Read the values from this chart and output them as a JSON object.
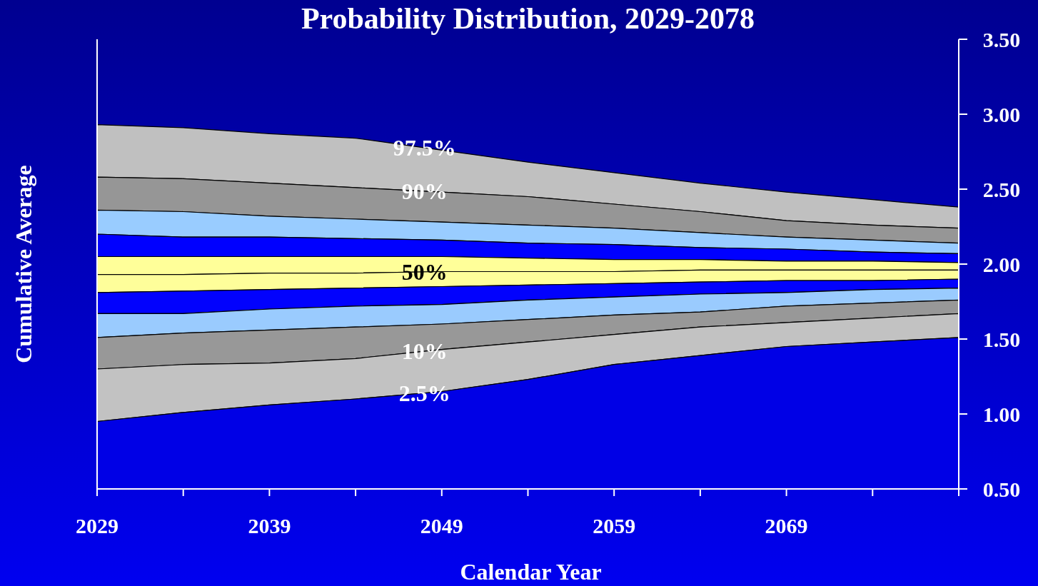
{
  "chart_data": {
    "type": "area",
    "title": "Probability Distribution, 2029-2078",
    "xlabel": "Calendar Year",
    "ylabel": "Cumulative Average",
    "x": [
      2029,
      2034,
      2039,
      2044,
      2049,
      2054,
      2059,
      2064,
      2069,
      2074,
      2079
    ],
    "xlim": [
      2029,
      2079
    ],
    "xticks": [
      2029,
      {
        "value": 2034,
        "label": null
      },
      2039,
      {
        "value": 2044,
        "label": null
      },
      2049,
      {
        "value": 2054,
        "label": null
      },
      2059,
      {
        "value": 2064,
        "label": null
      },
      2069,
      {
        "value": 2074,
        "label": null
      },
      {
        "value": 2079,
        "label": null
      }
    ],
    "ylim": [
      0.5,
      3.5
    ],
    "yticks": [
      {
        "value": 0.5,
        "label": "0.50"
      },
      {
        "value": 1,
        "label": "1.00"
      },
      {
        "value": 1.5,
        "label": "1.50"
      },
      {
        "value": 2,
        "label": "2.00"
      },
      {
        "value": 2.5,
        "label": "2.50"
      },
      {
        "value": 3,
        "label": "3.00"
      },
      {
        "value": 3.5,
        "label": "3.50"
      }
    ],
    "grid": false,
    "series": [
      {
        "name": "97.5%",
        "color": "#c0c0c0",
        "values": [
          2.93,
          2.91,
          2.87,
          2.84,
          2.76,
          2.68,
          2.61,
          2.54,
          2.48,
          2.43,
          2.38
        ]
      },
      {
        "name": "90%",
        "color": "#969696",
        "values": [
          2.58,
          2.57,
          2.54,
          2.51,
          2.48,
          2.45,
          2.4,
          2.35,
          2.29,
          2.26,
          2.24
        ]
      },
      {
        "color": "#99ccff",
        "values": [
          2.36,
          2.35,
          2.32,
          2.3,
          2.28,
          2.26,
          2.24,
          2.21,
          2.18,
          2.16,
          2.14
        ]
      },
      {
        "color": "#0000ff",
        "values": [
          2.2,
          2.18,
          2.18,
          2.17,
          2.16,
          2.14,
          2.13,
          2.11,
          2.1,
          2.08,
          2.07
        ]
      },
      {
        "color": "#ffff99",
        "values": [
          2.05,
          2.05,
          2.05,
          2.05,
          2.05,
          2.04,
          2.03,
          2.03,
          2.02,
          2.02,
          2.01
        ]
      },
      {
        "name": "50%",
        "color": "#fefe9a",
        "values": [
          1.93,
          1.93,
          1.94,
          1.94,
          1.95,
          1.95,
          1.95,
          1.96,
          1.96,
          1.96,
          1.96
        ]
      },
      {
        "color": "#0202fd",
        "values": [
          1.81,
          1.82,
          1.83,
          1.84,
          1.85,
          1.86,
          1.87,
          1.88,
          1.89,
          1.89,
          1.9
        ]
      },
      {
        "color": "#9acbfe",
        "values": [
          1.67,
          1.67,
          1.7,
          1.72,
          1.73,
          1.76,
          1.78,
          1.8,
          1.81,
          1.83,
          1.84
        ]
      },
      {
        "color": "#989898",
        "values": [
          1.51,
          1.54,
          1.56,
          1.58,
          1.6,
          1.63,
          1.66,
          1.68,
          1.72,
          1.74,
          1.76
        ]
      },
      {
        "name": "10%",
        "color": "#c2c2c2",
        "values": [
          1.3,
          1.33,
          1.34,
          1.37,
          1.43,
          1.48,
          1.53,
          1.58,
          1.61,
          1.64,
          1.67
        ]
      },
      {
        "name": "2.5%",
        "color": "#0000e6",
        "values": [
          0.95,
          1.01,
          1.06,
          1.1,
          1.15,
          1.23,
          1.33,
          1.39,
          1.45,
          1.48,
          1.51
        ]
      }
    ]
  }
}
